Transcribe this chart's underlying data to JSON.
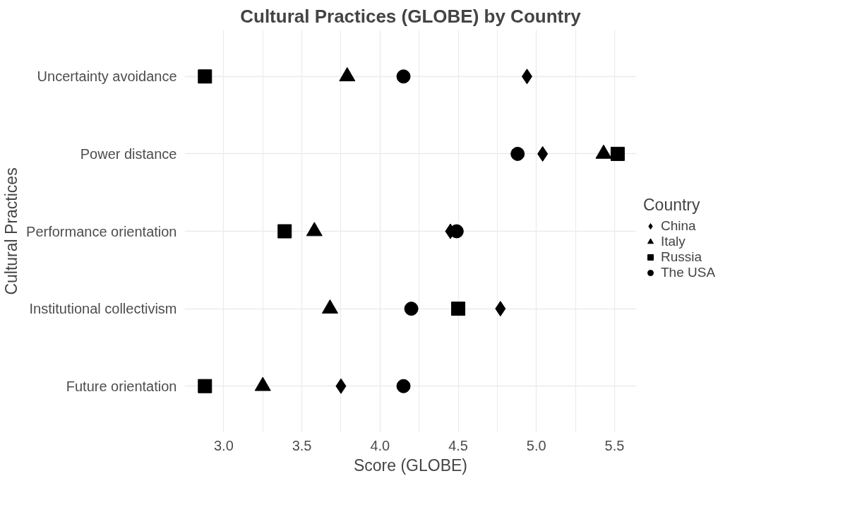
{
  "chart_data": {
    "type": "scatter",
    "orientation": "horizontal",
    "title": "Cultural Practices (GLOBE) by Country",
    "xlabel": "Score (GLOBE)",
    "ylabel": "Cultural Practices",
    "legend_title": "Country",
    "categories": [
      "Uncertainty avoidance",
      "Power distance",
      "Performance orientation",
      "Institutional collectivism",
      "Future orientation"
    ],
    "series": [
      {
        "name": "China",
        "color": "#000000",
        "marker": "diamond",
        "values": [
          4.94,
          5.04,
          4.45,
          4.77,
          3.75
        ]
      },
      {
        "name": "Italy",
        "color": "#000000",
        "marker": "triangle",
        "values": [
          3.79,
          5.43,
          3.58,
          3.68,
          3.25
        ]
      },
      {
        "name": "Russia",
        "color": "#000000",
        "marker": "square",
        "values": [
          2.88,
          5.52,
          3.39,
          4.5,
          2.88
        ]
      },
      {
        "name": "The USA",
        "color": "#000000",
        "marker": "circle",
        "values": [
          4.15,
          4.88,
          4.49,
          4.2,
          4.15
        ]
      }
    ],
    "xlim": [
      2.75,
      5.64
    ],
    "xticks": [
      {
        "value": 3,
        "label": "3.0"
      },
      {
        "value": 3.5,
        "label": "3.5"
      },
      {
        "value": 4,
        "label": "4.0"
      },
      {
        "value": 4.5,
        "label": "4.5"
      },
      {
        "value": 5,
        "label": "5.0"
      },
      {
        "value": 5.5,
        "label": "5.5"
      }
    ],
    "grid": true,
    "legend": "right"
  }
}
